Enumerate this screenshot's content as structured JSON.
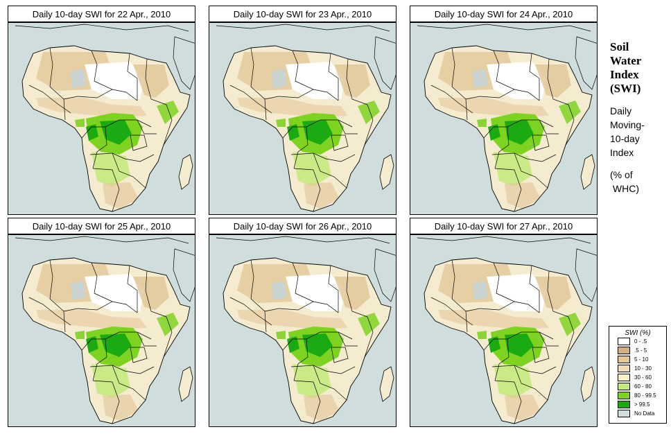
{
  "panels": [
    {
      "title": "Daily 10-day SWI for  22 Apr., 2010"
    },
    {
      "title": "Daily 10-day SWI for  23 Apr., 2010"
    },
    {
      "title": "Daily 10-day SWI for  24 Apr., 2010"
    },
    {
      "title": "Daily 10-day SWI for  25 Apr., 2010"
    },
    {
      "title": "Daily 10-day SWI for  26 Apr., 2010"
    },
    {
      "title": "Daily 10-day SWI for  27 Apr., 2010"
    }
  ],
  "side": {
    "title_lines": [
      "Soil",
      "Water",
      "Index",
      "(SWI)"
    ],
    "sub_lines": [
      "Daily",
      "Moving-",
      "10-day",
      "Index"
    ],
    "unit_lines": [
      "(% of",
      " WHC)"
    ]
  },
  "legend": {
    "title": "SWI (%)",
    "items": [
      {
        "label": "0 - .5",
        "color": "#ffffff"
      },
      {
        "label": ".5 - 5",
        "color": "#d2b27c"
      },
      {
        "label": "5 - 10",
        "color": "#e3c896"
      },
      {
        "label": "10 - 30",
        "color": "#f1ddb5"
      },
      {
        "label": "30 - 60",
        "color": "#f8f2c4"
      },
      {
        "label": "60 - 80",
        "color": "#c5ea80"
      },
      {
        "label": "80 - 99.5",
        "color": "#7ed321"
      },
      {
        "label": "> 99.5",
        "color": "#1aab12"
      },
      {
        "label": "No Data",
        "color": "#cfdedc"
      }
    ]
  },
  "colors": {
    "ocean": "#cfdedc",
    "land": "#f5ecd0",
    "dry": "#e1c596",
    "desert": "#ffffff",
    "nodata": "#c9d4d2",
    "green": "#7ed321",
    "darkgreen": "#1aab12",
    "lightgreen": "#c5ea80"
  }
}
